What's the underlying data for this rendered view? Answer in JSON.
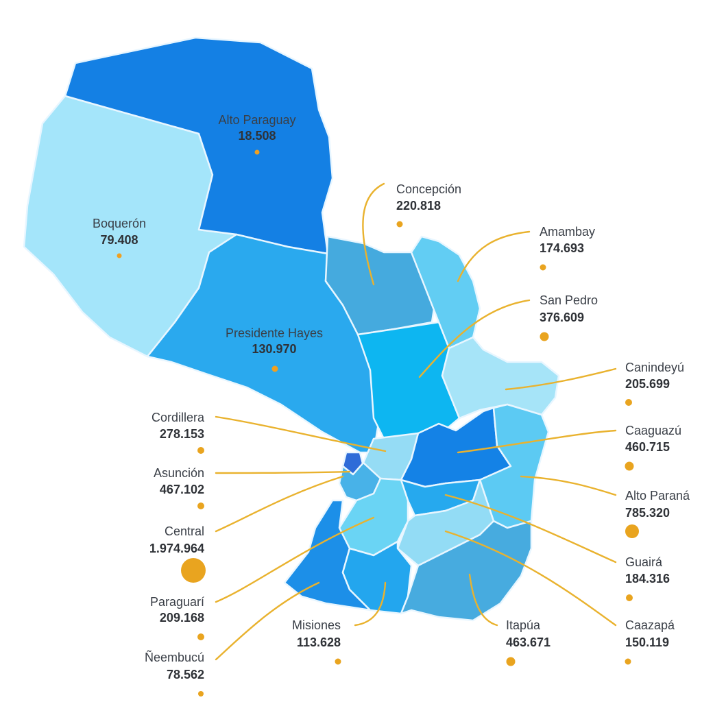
{
  "colors": {
    "marker": "#f0a020",
    "leader": "#e9b22e",
    "text": "#3a3f47",
    "shades": [
      "#9fe4fa",
      "#7fd6f7",
      "#5ccaf3",
      "#38b7ee",
      "#25a8ee",
      "#1c96ea",
      "#1782e6",
      "#42a8de",
      "#0ab4f0"
    ]
  },
  "departments": [
    {
      "name": "Alto Paraguay",
      "value": "18.508"
    },
    {
      "name": "Boquerón",
      "value": "79.408"
    },
    {
      "name": "Presidente Hayes",
      "value": "130.970"
    },
    {
      "name": "Concepción",
      "value": "220.818"
    },
    {
      "name": "Amambay",
      "value": "174.693"
    },
    {
      "name": "San Pedro",
      "value": "376.609"
    },
    {
      "name": "Canindeyú",
      "value": "205.699"
    },
    {
      "name": "Caaguazú",
      "value": "460.715"
    },
    {
      "name": "Alto Paraná",
      "value": "785.320"
    },
    {
      "name": "Guairá",
      "value": "184.316"
    },
    {
      "name": "Caazapá",
      "value": "150.119"
    },
    {
      "name": "Itapúa",
      "value": "463.671"
    },
    {
      "name": "Misiones",
      "value": "113.628"
    },
    {
      "name": "Cordillera",
      "value": "278.153"
    },
    {
      "name": "Asunción",
      "value": "467.102"
    },
    {
      "name": "Central",
      "value": "1.974.964"
    },
    {
      "name": "Paraguarí",
      "value": "209.168"
    },
    {
      "name": "Ñeembucú",
      "value": "78.562"
    }
  ]
}
